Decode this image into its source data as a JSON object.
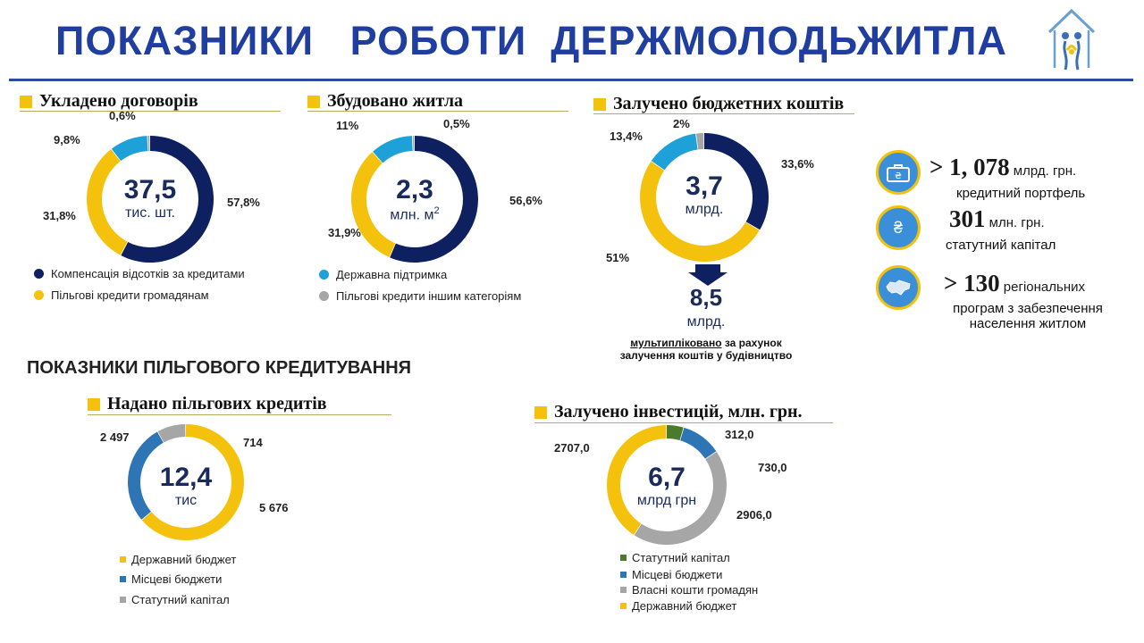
{
  "header": {
    "title": "ПОКАЗНИКИ   РОБОТИ  ДЕРЖМОЛОДЬЖИТЛА"
  },
  "colors": {
    "navy": "#0f2060",
    "yellow": "#f4c20d",
    "light_blue": "#1ea0d8",
    "gray": "#a6a6a6",
    "mid_blue": "#2e75b6",
    "green": "#4a7a2a",
    "title_blue": "#1f3ea0"
  },
  "logo": {
    "icon": "house-family-icon"
  },
  "sections": {
    "contracts": {
      "title": "Укладено договорів"
    },
    "housing": {
      "title": "Збудовано житла"
    },
    "budget": {
      "title": "Залучено бюджетних коштів"
    },
    "loans": {
      "title": "Надано пільгових кредитів"
    },
    "investments": {
      "title": "Залучено інвестицій, млн. грн."
    }
  },
  "subtitle": "ПОКАЗНИКИ ПІЛЬГОВОГО КРЕДИТУВАННЯ",
  "legend_top": {
    "compensation": "Компенсація відсотків  за кредитами",
    "citizens": "Пільгові кредити громадянам",
    "state_support": "Державна підтримка",
    "other_categories": "Пільгові кредити іншим категоріям"
  },
  "multiplier": {
    "value": "8,5",
    "unit": "млрд.",
    "text_underlined": "мультипліковано",
    "text_rest": " за рахунок",
    "text_line2": "залучення коштів у будівництво"
  },
  "stats": [
    {
      "icon": "briefcase-icon",
      "value": "> 1, 078",
      "unit": " млрд. грн.",
      "caption": "кредитний портфель"
    },
    {
      "icon": "hryvnia-icon",
      "value": "301",
      "unit": " млн. грн.",
      "caption": "статутний капітал"
    },
    {
      "icon": "ukraine-map-icon",
      "value": "> 130",
      "unit": " регіональних",
      "caption": "програм з забезпечення",
      "caption2": "населення житлом"
    }
  ],
  "chart_data": [
    {
      "type": "pie",
      "title": "Укладено договорів",
      "center_value": "37,5",
      "center_unit": "тис. шт.",
      "labels": [
        "Компенсація відсотків  за кредитами",
        "Пільгові кредити громадянам",
        "Державна підтримка",
        "Пільгові кредити іншим категоріям"
      ],
      "values": [
        57.8,
        31.8,
        9.8,
        0.6
      ],
      "value_labels": [
        "57,8%",
        "31,8%",
        "9,8%",
        "0,6%"
      ],
      "colors": [
        "#0f2060",
        "#f4c20d",
        "#1ea0d8",
        "#a6a6a6"
      ]
    },
    {
      "type": "pie",
      "title": "Збудовано житла",
      "center_value": "2,3",
      "center_unit": "млн.  м",
      "center_sup": "2",
      "labels": [
        "Компенсація відсотків  за кредитами",
        "Пільгові кредити громадянам",
        "Державна підтримка",
        "Пільгові кредити іншим категоріям"
      ],
      "values": [
        56.6,
        31.9,
        11,
        0.5
      ],
      "value_labels": [
        "56,6%",
        "31,9%",
        "11%",
        "0,5%"
      ],
      "colors": [
        "#0f2060",
        "#f4c20d",
        "#1ea0d8",
        "#a6a6a6"
      ]
    },
    {
      "type": "pie",
      "title": "Залучено бюджетних коштів",
      "center_value": "3,7",
      "center_unit": "млрд.",
      "labels": [
        "Компенсація відсотків  за кредитами",
        "Пільгові кредити громадянам",
        "Державна підтримка",
        "Пільгові кредити іншим категоріям"
      ],
      "values": [
        33.6,
        51,
        13.4,
        2
      ],
      "value_labels": [
        "33,6%",
        "51%",
        "13,4%",
        "2%"
      ],
      "colors": [
        "#0f2060",
        "#f4c20d",
        "#1ea0d8",
        "#a6a6a6"
      ]
    },
    {
      "type": "pie",
      "title": "Надано пільгових кредитів",
      "center_value": "12,4",
      "center_unit": "тис",
      "labels": [
        "Державний бюджет",
        "Місцеві бюджети",
        "Статутний капітал"
      ],
      "values": [
        5676,
        2497,
        714
      ],
      "value_labels": [
        "5 676",
        "2 497",
        "714"
      ],
      "colors": [
        "#f4c20d",
        "#2e75b6",
        "#a6a6a6"
      ]
    },
    {
      "type": "pie",
      "title": "Залучено інвестицій, млн. грн.",
      "center_value": "6,7",
      "center_unit": "млрд грн",
      "labels": [
        "Статутний капітал",
        "Місцеві бюджети",
        "Власні кошти громадян",
        "Державний бюджет"
      ],
      "values": [
        312.0,
        730.0,
        2906.0,
        2707.0
      ],
      "value_labels": [
        "312,0",
        "730,0",
        "2906,0",
        "2707,0"
      ],
      "colors": [
        "#4a7a2a",
        "#2e75b6",
        "#a6a6a6",
        "#f4c20d"
      ]
    }
  ]
}
